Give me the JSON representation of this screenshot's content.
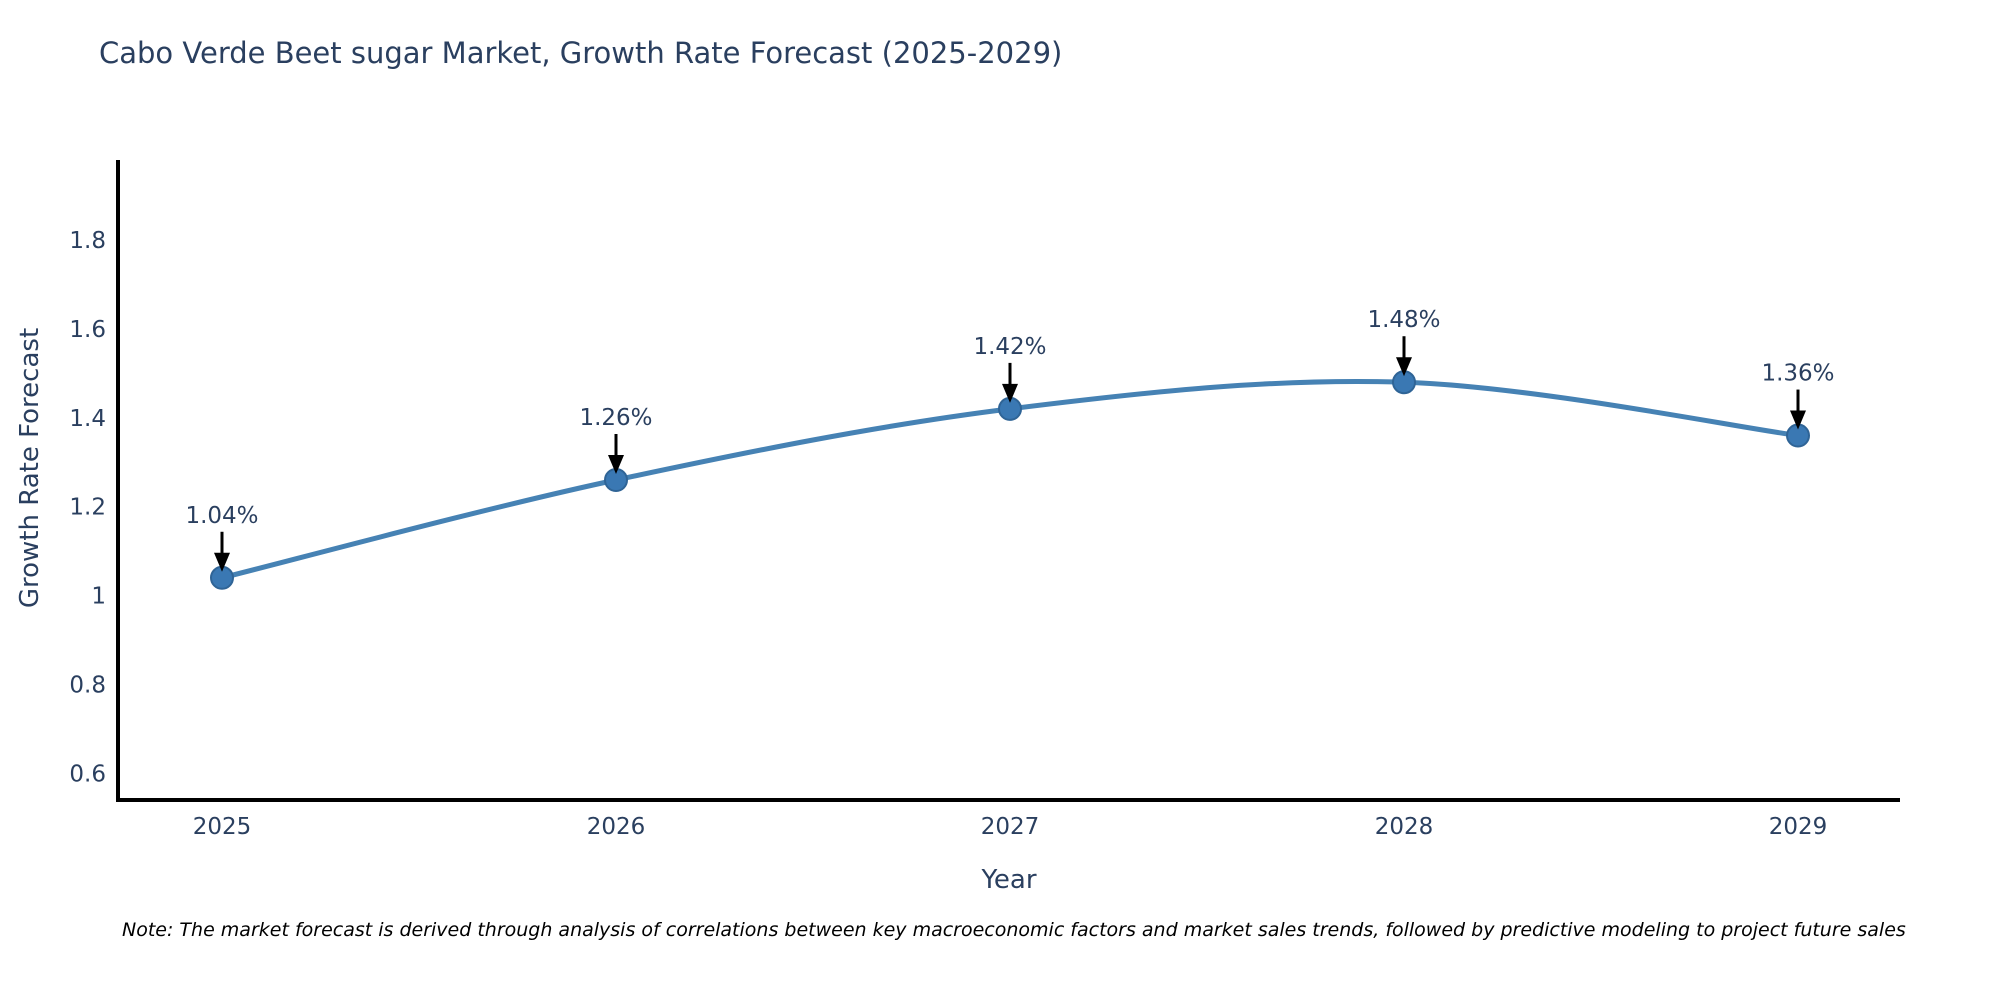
{
  "chart_data": {
    "type": "line",
    "title": "Cabo Verde Beet sugar Market, Growth Rate Forecast (2025-2029)",
    "xlabel": "Year",
    "ylabel": "Growth Rate Forecast",
    "categories": [
      "2025",
      "2026",
      "2027",
      "2028",
      "2029"
    ],
    "series": [
      {
        "name": "Growth Rate Forecast",
        "values": [
          1.04,
          1.26,
          1.42,
          1.48,
          1.36
        ],
        "point_labels": [
          "1.04%",
          "1.26%",
          "1.42%",
          "1.48%",
          "1.36%"
        ]
      }
    ],
    "ytick_values": [
      0.6,
      0.8,
      1.0,
      1.2,
      1.4,
      1.6,
      1.8
    ],
    "ytick_labels": [
      "0.6",
      "0.8",
      "1",
      "1.2",
      "1.4",
      "1.6",
      "1.8"
    ],
    "ylim": [
      0.54,
      1.98
    ],
    "line_shape": "spline",
    "grid": false,
    "legend_position": "none",
    "annotations_have_arrows": true,
    "colors": {
      "line": "#4682b4",
      "marker_fill": "#3a78b3",
      "marker_edge": "#2f6496",
      "axis_line": "#000000",
      "tick_text": "#2a3f5f",
      "title_text": "#2a3f5f",
      "annotation_text": "#2a3f5f",
      "arrow": "#000000",
      "note_text": "#000000",
      "background": "#ffffff"
    }
  },
  "note": {
    "text": "Note: The market forecast is derived through analysis of correlations between key macroeconomic factors and market sales trends, followed by predictive modeling to project future sales"
  }
}
